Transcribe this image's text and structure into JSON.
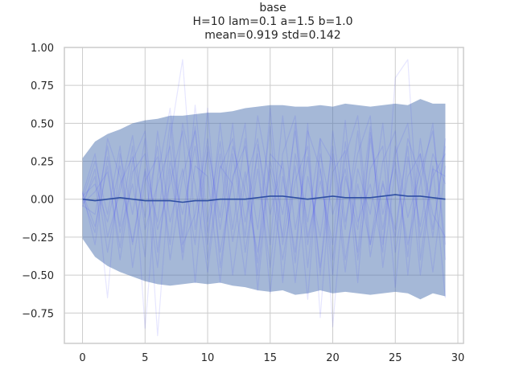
{
  "chart_data": {
    "type": "line",
    "title_lines": [
      "base",
      "H=10 lam=0.1 a=1.5 b=1.0",
      "mean=0.919 std=0.142"
    ],
    "xlabel": "",
    "ylabel": "",
    "xlim": [
      -1.45,
      30.45
    ],
    "ylim": [
      -0.95,
      1.0
    ],
    "x_ticks": [
      0,
      5,
      10,
      15,
      20,
      25,
      30
    ],
    "y_ticks": [
      1.0,
      0.75,
      0.5,
      0.25,
      0.0,
      -0.25,
      -0.5,
      -0.75
    ],
    "y_tick_labels": [
      "1.00",
      "0.75",
      "0.50",
      "0.25",
      "0.00",
      "−0.25",
      "−0.50",
      "−0.75"
    ],
    "grid": true,
    "x": [
      0,
      1,
      2,
      3,
      4,
      5,
      6,
      7,
      8,
      9,
      10,
      11,
      12,
      13,
      14,
      15,
      16,
      17,
      18,
      19,
      20,
      21,
      22,
      23,
      24,
      25,
      26,
      27,
      28,
      29
    ],
    "band": {
      "upper": [
        0.27,
        0.38,
        0.43,
        0.46,
        0.5,
        0.52,
        0.53,
        0.55,
        0.55,
        0.56,
        0.57,
        0.57,
        0.58,
        0.6,
        0.61,
        0.62,
        0.62,
        0.61,
        0.61,
        0.62,
        0.61,
        0.63,
        0.62,
        0.61,
        0.62,
        0.63,
        0.62,
        0.66,
        0.63,
        0.63
      ],
      "lower": [
        -0.26,
        -0.38,
        -0.44,
        -0.48,
        -0.51,
        -0.54,
        -0.56,
        -0.57,
        -0.56,
        -0.55,
        -0.56,
        -0.55,
        -0.57,
        -0.58,
        -0.6,
        -0.61,
        -0.6,
        -0.63,
        -0.62,
        -0.6,
        -0.62,
        -0.61,
        -0.62,
        -0.63,
        -0.62,
        -0.61,
        -0.62,
        -0.66,
        -0.62,
        -0.64
      ]
    },
    "mean": [
      0.0,
      -0.01,
      0.0,
      0.01,
      0.0,
      -0.01,
      -0.01,
      -0.01,
      -0.02,
      -0.01,
      -0.01,
      0.0,
      0.0,
      0.0,
      0.01,
      0.02,
      0.02,
      0.01,
      0.0,
      0.01,
      0.02,
      0.01,
      0.01,
      0.01,
      0.02,
      0.03,
      0.02,
      0.02,
      0.01,
      0.0
    ],
    "traces": [
      [
        0.02,
        0.1,
        -0.15,
        0.22,
        -0.3,
        0.18,
        -0.45,
        0.4,
        0.92,
        -0.2,
        0.31,
        -0.35,
        0.12,
        0.5,
        -0.6,
        0.25,
        -0.1,
        0.45,
        -0.3,
        0.2,
        -0.5,
        0.38,
        -0.15,
        0.1,
        -0.35,
        0.8,
        0.92,
        -0.4,
        0.22,
        -0.65
      ],
      [
        -0.05,
        0.2,
        -0.35,
        0.1,
        0.28,
        -0.12,
        0.35,
        -0.4,
        0.15,
        0.45,
        -0.22,
        0.3,
        -0.5,
        0.12,
        0.4,
        -0.3,
        0.55,
        -0.2,
        0.28,
        -0.45,
        0.18,
        0.32,
        -0.55,
        0.44,
        -0.1,
        0.25,
        -0.38,
        0.4,
        -0.2,
        0.35
      ],
      [
        0.05,
        -0.3,
        0.28,
        -0.18,
        0.35,
        -0.85,
        0.15,
        0.6,
        -0.25,
        0.48,
        -0.4,
        0.22,
        0.1,
        -0.5,
        0.36,
        -0.1,
        0.25,
        -0.42,
        0.5,
        -0.78,
        0.3,
        -0.2,
        0.45,
        -0.38,
        0.12,
        -0.25,
        0.4,
        0.15,
        -0.48,
        0.22
      ],
      [
        -0.02,
        0.15,
        -0.65,
        0.3,
        -0.1,
        0.4,
        -0.9,
        0.2,
        -0.35,
        0.62,
        -0.15,
        0.38,
        -0.28,
        0.18,
        -0.42,
        0.6,
        -0.3,
        0.22,
        -0.66,
        0.4,
        -0.84,
        0.15,
        -0.2,
        0.48,
        -0.3,
        0.35,
        -0.12,
        0.18,
        0.45,
        -0.3
      ],
      [
        0.04,
        -0.18,
        0.22,
        -0.4,
        0.18,
        0.3,
        -0.2,
        0.1,
        0.45,
        -0.55,
        0.35,
        -0.12,
        0.5,
        -0.35,
        0.2,
        -0.45,
        0.3,
        0.55,
        -0.25,
        0.12,
        -0.3,
        0.52,
        -0.4,
        0.2,
        0.35,
        -0.58,
        0.28,
        -0.18,
        0.3,
        0.1
      ],
      [
        0.0,
        0.25,
        -0.1,
        0.35,
        -0.45,
        0.12,
        0.28,
        -0.3,
        0.5,
        0.1,
        -0.48,
        0.2,
        0.4,
        -0.15,
        0.3,
        -0.62,
        0.15,
        -0.35,
        0.45,
        0.2,
        -0.4,
        0.28,
        0.55,
        -0.3,
        0.1,
        -0.2,
        0.35,
        -0.5,
        0.2,
        0.15
      ],
      [
        -0.04,
        -0.1,
        0.35,
        -0.22,
        0.1,
        -0.38,
        0.45,
        -0.15,
        0.2,
        -0.3,
        0.6,
        -0.45,
        0.15,
        0.35,
        -0.2,
        0.48,
        -0.55,
        0.3,
        -0.15,
        0.4,
        0.25,
        -0.48,
        0.2,
        -0.1,
        0.5,
        -0.35,
        0.15,
        0.3,
        -0.25,
        0.4
      ],
      [
        0.03,
        0.3,
        -0.25,
        0.05,
        0.42,
        -0.2,
        0.1,
        0.35,
        -0.4,
        0.22,
        0.15,
        -0.55,
        0.3,
        -0.25,
        0.55,
        0.1,
        -0.4,
        0.12,
        0.35,
        -0.5,
        0.45,
        -0.15,
        0.3,
        0.55,
        -0.45,
        0.2,
        -0.3,
        0.1,
        0.5,
        -0.4
      ],
      [
        -0.03,
        0.05,
        0.18,
        -0.32,
        0.25,
        0.45,
        -0.35,
        0.25,
        -0.1,
        0.35,
        -0.3,
        0.5,
        -0.2,
        0.4,
        -0.5,
        0.3,
        0.2,
        -0.55,
        0.15,
        -0.25,
        0.35,
        -0.4,
        0.1,
        -0.3,
        0.25,
        0.45,
        -0.5,
        0.3,
        -0.1,
        -0.25
      ],
      [
        0.01,
        -0.22,
        0.4,
        0.15,
        -0.28,
        0.2,
        -0.15,
        0.5,
        -0.3,
        -0.1,
        0.4,
        -0.2,
        0.35,
        0.05,
        -0.35,
        0.2,
        -0.25,
        0.5,
        -0.45,
        0.3,
        -0.1,
        0.2,
        -0.35,
        0.4,
        -0.2,
        0.3,
        0.5,
        -0.25,
        0.15,
        0.3
      ]
    ],
    "colors": {
      "band": "#4c72b0",
      "band_opacity": 0.5,
      "mean": "#2f4fa3",
      "trace": "#3b3bff",
      "trace_opacity": 0.13
    }
  }
}
